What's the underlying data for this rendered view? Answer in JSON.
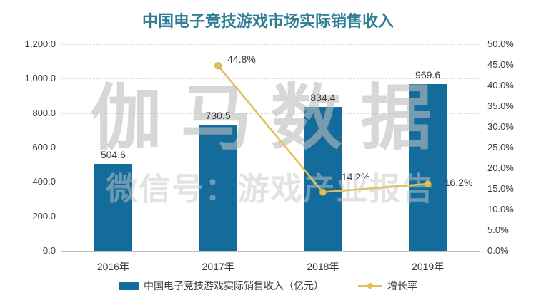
{
  "watermark": {
    "line1": "伽马数据",
    "line2": "微信号：游戏产业报告"
  },
  "legend": {
    "bar_label": "中国电子竞技游戏实际销售收入（亿元）",
    "line_label": "增长率"
  },
  "colors": {
    "bar": "#136C9C",
    "line": "#E0C05A",
    "line_marker_stroke": "#C8A73F",
    "title": "#2E7F96",
    "axis_text": "#3A3A3A",
    "gridline": "#DCDCDC",
    "axis_line": "#BFBFBF"
  },
  "chart_data": {
    "type": "combo",
    "title": "中国电子竞技游戏市场实际销售收入",
    "categories": [
      "2016年",
      "2017年",
      "2018年",
      "2019年"
    ],
    "series": [
      {
        "name": "中国电子竞技游戏实际销售收入（亿元）",
        "type": "bar",
        "axis": "left",
        "values": [
          504.6,
          730.5,
          834.4,
          969.6
        ],
        "labels": [
          "504.6",
          "730.5",
          "834.4",
          "969.6"
        ]
      },
      {
        "name": "增长率",
        "type": "line",
        "axis": "right",
        "values": [
          null,
          44.8,
          14.2,
          16.2
        ],
        "labels": [
          null,
          "44.8%",
          "14.2%",
          "16.2%"
        ]
      }
    ],
    "left_axis": {
      "min": 0,
      "max": 1200,
      "ticks": [
        "1,200.0",
        "1,000.0",
        "800.0",
        "600.0",
        "400.0",
        "200.0",
        "0.0"
      ]
    },
    "right_axis": {
      "min": 0,
      "max": 50,
      "ticks": [
        "50.0%",
        "45.0%",
        "40.0%",
        "35.0%",
        "30.0%",
        "25.0%",
        "20.0%",
        "15.0%",
        "10.0%",
        "5.0%",
        "0.0%"
      ]
    },
    "grid": true,
    "legend_position": "bottom"
  }
}
